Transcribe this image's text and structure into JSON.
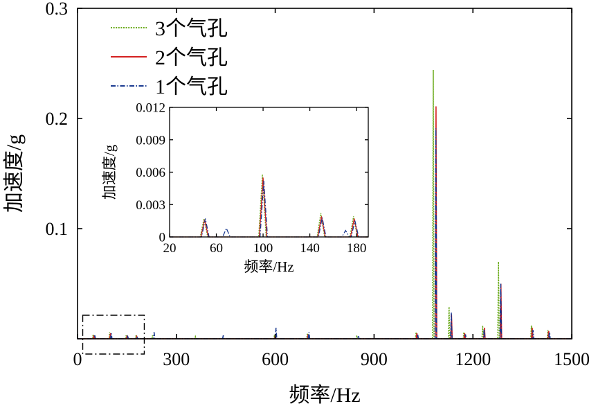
{
  "colors": {
    "series_3": "#6aaa1a",
    "series_2": "#d42020",
    "series_1": "#1a3a90",
    "axis": "#000000"
  },
  "chart_data": [
    {
      "id": "main",
      "type": "line",
      "xlabel": "频率/Hz",
      "ylabel": "加速度/g",
      "xlim": [
        0,
        1500
      ],
      "ylim": [
        0,
        0.3
      ],
      "xticks": [
        0,
        300,
        600,
        900,
        1200,
        1500
      ],
      "xtick_labels": [
        "0",
        "300",
        "600",
        "900",
        "1200",
        "1500"
      ],
      "yticks": [
        0.1,
        0.2,
        0.3
      ],
      "ytick_labels": [
        "0.1",
        "0.2",
        "0.3"
      ],
      "grid": false,
      "legend_position": "top-left",
      "series": [
        {
          "name": "3个气孔",
          "style": "dotted",
          "color": "#6aaa1a",
          "peaks": [
            [
              50,
              0.004
            ],
            [
              100,
              0.006
            ],
            [
              150,
              0.003
            ],
            [
              180,
              0.003
            ],
            [
              230,
              0.003
            ],
            [
              360,
              0.002
            ],
            [
              600,
              0.003
            ],
            [
              700,
              0.005
            ],
            [
              850,
              0.003
            ],
            [
              1030,
              0.006
            ],
            [
              1082,
              0.244
            ],
            [
              1130,
              0.029
            ],
            [
              1175,
              0.006
            ],
            [
              1232,
              0.012
            ],
            [
              1280,
              0.07
            ],
            [
              1380,
              0.012
            ],
            [
              1430,
              0.008
            ]
          ]
        },
        {
          "name": "2个气孔",
          "style": "solid",
          "color": "#d42020",
          "peaks": [
            [
              50,
              0.003
            ],
            [
              100,
              0.005
            ],
            [
              150,
              0.002
            ],
            [
              180,
              0.002
            ],
            [
              600,
              0.002
            ],
            [
              700,
              0.004
            ],
            [
              1030,
              0.005
            ],
            [
              1088,
              0.211
            ],
            [
              1135,
              0.022
            ],
            [
              1175,
              0.005
            ],
            [
              1235,
              0.01
            ],
            [
              1285,
              0.05
            ],
            [
              1380,
              0.01
            ],
            [
              1430,
              0.007
            ]
          ]
        },
        {
          "name": "1个气孔",
          "style": "dashdot",
          "color": "#1a3a90",
          "peaks": [
            [
              50,
              0.003
            ],
            [
              100,
              0.005
            ],
            [
              150,
              0.002
            ],
            [
              180,
              0.002
            ],
            [
              230,
              0.006
            ],
            [
              440,
              0.003
            ],
            [
              600,
              0.01
            ],
            [
              700,
              0.006
            ],
            [
              850,
              0.003
            ],
            [
              1030,
              0.004
            ],
            [
              1085,
              0.191
            ],
            [
              1132,
              0.024
            ],
            [
              1175,
              0.004
            ],
            [
              1232,
              0.009
            ],
            [
              1282,
              0.05
            ],
            [
              1380,
              0.008
            ],
            [
              1430,
              0.006
            ]
          ]
        }
      ]
    },
    {
      "id": "inset",
      "type": "line",
      "xlabel": "频率/Hz",
      "ylabel": "加速度/g",
      "xlim": [
        20,
        190
      ],
      "ylim": [
        0,
        0.012
      ],
      "xticks": [
        20,
        60,
        100,
        140,
        180
      ],
      "xtick_labels": [
        "20",
        "60",
        "100",
        "140",
        "180"
      ],
      "yticks": [
        0,
        0.003,
        0.006,
        0.009,
        0.012
      ],
      "ytick_labels": [
        "0",
        "0.003",
        "0.006",
        "0.009",
        "0.012"
      ],
      "grid": false,
      "series": [
        {
          "name": "3个气孔",
          "style": "dotted",
          "color": "#6aaa1a",
          "peaks": [
            [
              50,
              0.0017
            ],
            [
              100,
              0.0058
            ],
            [
              150,
              0.0022
            ],
            [
              178,
              0.0019
            ]
          ]
        },
        {
          "name": "2个气孔",
          "style": "solid",
          "color": "#d42020",
          "peaks": [
            [
              50,
              0.0016
            ],
            [
              100,
              0.0055
            ],
            [
              150,
              0.0019
            ],
            [
              178,
              0.0017
            ]
          ]
        },
        {
          "name": "1个气孔",
          "style": "dashdot",
          "color": "#1a3a90",
          "peaks": [
            [
              50,
              0.0017
            ],
            [
              68,
              0.0008
            ],
            [
              100,
              0.0052
            ],
            [
              150,
              0.0018
            ],
            [
              170,
              0.0006
            ],
            [
              178,
              0.0015
            ]
          ]
        }
      ]
    }
  ]
}
